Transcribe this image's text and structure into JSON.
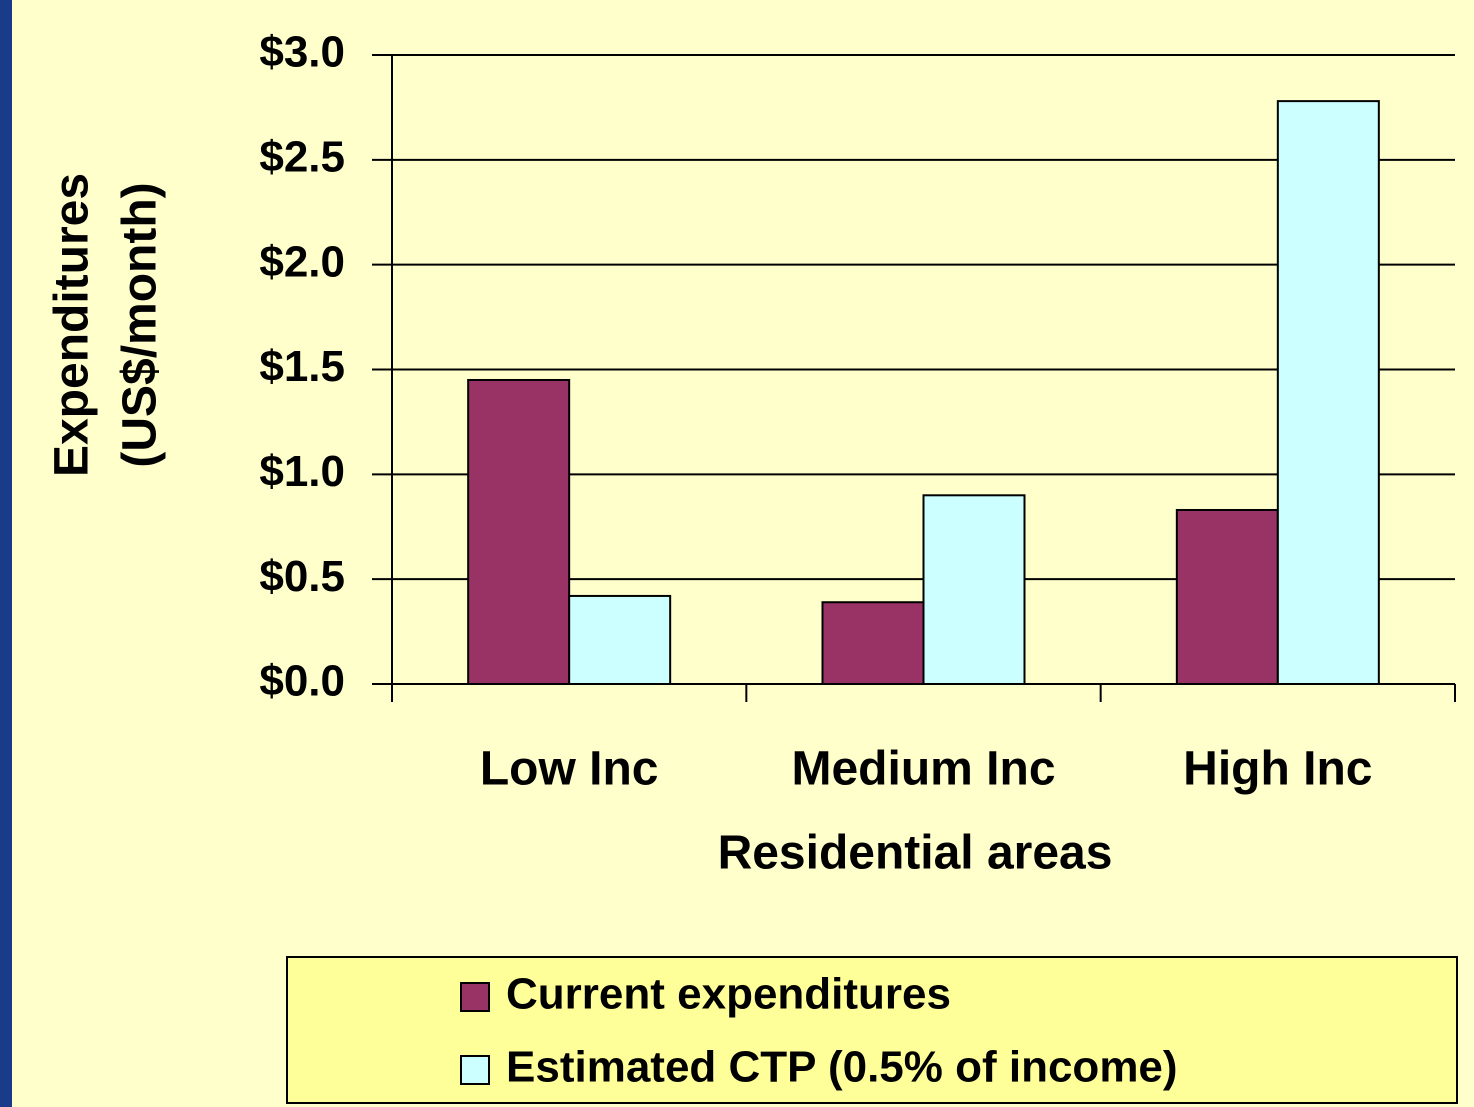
{
  "chart_data": {
    "type": "bar",
    "ylabel": [
      "Expenditures",
      "(US$/month)"
    ],
    "xlabel": "Residential areas",
    "categories": [
      "Low Inc",
      "Medium Inc",
      "High Inc"
    ],
    "series": [
      {
        "name": "Current expenditures",
        "color": "#993366",
        "values": [
          1.45,
          0.39,
          0.83
        ]
      },
      {
        "name": "Estimated CTP (0.5% of income)",
        "color": "#ccffff",
        "values": [
          0.42,
          0.9,
          2.78
        ]
      }
    ],
    "ylim": [
      0,
      3
    ],
    "yticks": [
      {
        "value": 0,
        "label": "$0.0"
      },
      {
        "value": 0.5,
        "label": "$0.5"
      },
      {
        "value": 1,
        "label": "$1.0"
      },
      {
        "value": 1.5,
        "label": "$1.5"
      },
      {
        "value": 2,
        "label": "$2.0"
      },
      {
        "value": 2.5,
        "label": "$2.5"
      },
      {
        "value": 3,
        "label": "$3.0"
      }
    ],
    "grid": true,
    "legend": "bottom"
  }
}
